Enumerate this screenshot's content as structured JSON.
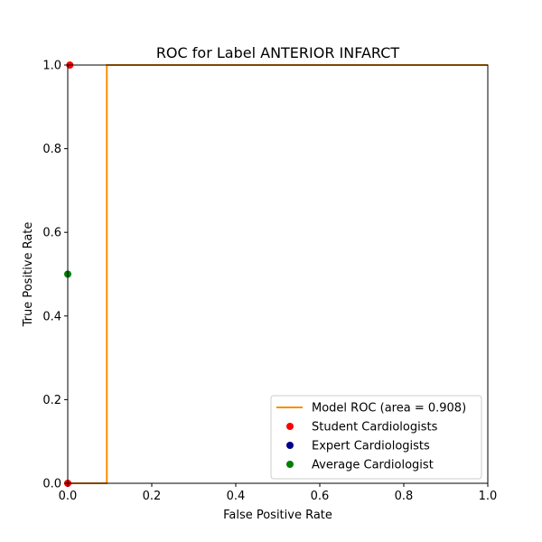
{
  "chart_data": {
    "type": "line",
    "title": "ROC for Label ANTERIOR INFARCT",
    "xlabel": "False Positive Rate",
    "ylabel": "True Positive Rate",
    "xlim": [
      0.0,
      1.0
    ],
    "ylim": [
      0.0,
      1.0
    ],
    "xticks": [
      "0.0",
      "0.2",
      "0.4",
      "0.6",
      "0.8",
      "1.0"
    ],
    "yticks": [
      "0.0",
      "0.2",
      "0.4",
      "0.6",
      "0.8",
      "1.0"
    ],
    "grid": false,
    "legend_position": "lower-right",
    "series": [
      {
        "name": "Model ROC (area = 0.908)",
        "kind": "line",
        "color": "#ff8c00",
        "x": [
          0.0,
          0.0,
          0.093,
          0.093,
          1.0
        ],
        "y": [
          0.0,
          0.0,
          0.0,
          1.0,
          1.0
        ]
      },
      {
        "name": "Student Cardiologists",
        "kind": "scatter",
        "color": "#ff0000",
        "x": [
          0.0,
          0.005
        ],
        "y": [
          0.0,
          1.0
        ]
      },
      {
        "name": "Expert Cardiologists",
        "kind": "scatter",
        "color": "#00008b",
        "x": [],
        "y": []
      },
      {
        "name": "Average Cardiologist",
        "kind": "scatter",
        "color": "#008000",
        "x": [
          0.0
        ],
        "y": [
          0.5
        ]
      }
    ]
  }
}
